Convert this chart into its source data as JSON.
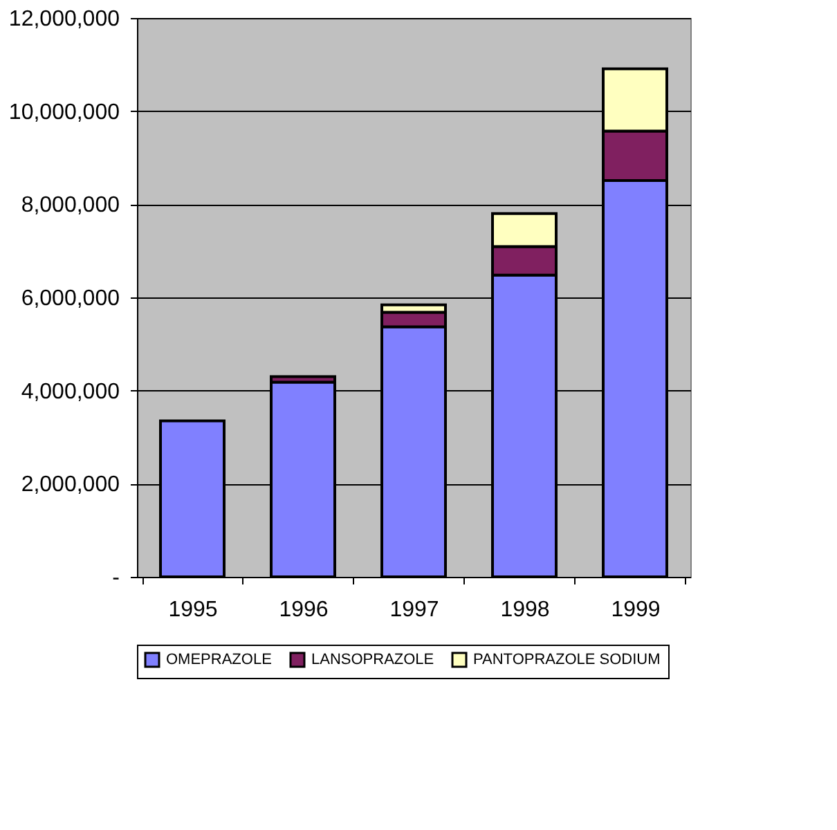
{
  "chart_data": {
    "type": "bar",
    "stacked": true,
    "categories": [
      "1995",
      "1996",
      "1997",
      "1998",
      "1999"
    ],
    "series": [
      {
        "name": "OMEPRAZOLE",
        "color": "#8080ff",
        "values": [
          3350000,
          4180000,
          5370000,
          6480000,
          8510000
        ]
      },
      {
        "name": "LANSOPRAZOLE",
        "color": "#802060",
        "values": [
          null,
          120000,
          310000,
          610000,
          1060000
        ]
      },
      {
        "name": "PANTOPRAZOLE SODIUM",
        "color": "#ffffc0",
        "values": [
          null,
          null,
          160000,
          710000,
          1340000
        ]
      }
    ],
    "ylim": [
      0,
      12000000
    ],
    "yticks": [
      {
        "value": 0,
        "label": "-"
      },
      {
        "value": 2000000,
        "label": "2,000,000"
      },
      {
        "value": 4000000,
        "label": "4,000,000"
      },
      {
        "value": 6000000,
        "label": "6,000,000"
      },
      {
        "value": 8000000,
        "label": "8,000,000"
      },
      {
        "value": 10000000,
        "label": "10,000,000"
      },
      {
        "value": 12000000,
        "label": "12,000,000"
      }
    ],
    "grid": "y",
    "legend": "bottom"
  }
}
